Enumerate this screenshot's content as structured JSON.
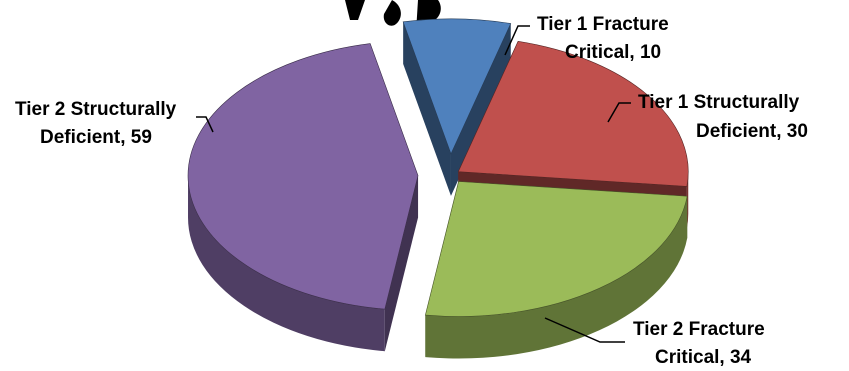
{
  "chart_data": {
    "type": "pie",
    "style": "3d-exploded",
    "slices": [
      {
        "key": "t1fc",
        "label": "Tier 1 Fracture Critical",
        "value": 10,
        "color": "#4f81bd"
      },
      {
        "key": "t1sd",
        "label": "Tier 1 Structurally Deficient",
        "value": 30,
        "color": "#c0504d"
      },
      {
        "key": "t2fc",
        "label": "Tier 2 Fracture Critical",
        "value": 34,
        "color": "#9bbb59"
      },
      {
        "key": "t2sd",
        "label": "Tier 2 Structurally Deficient",
        "value": 59,
        "color": "#8064a2"
      }
    ],
    "data_labels": {
      "t1fc": {
        "line1": "Tier 1 Fracture",
        "line2": "Critical, 10"
      },
      "t1sd": {
        "line1": "Tier 1 Structurally",
        "line2": "Deficient, 30"
      },
      "t2fc": {
        "line1": "Tier 2 Fracture",
        "line2": "Critical, 34"
      },
      "t2sd": {
        "line1": "Tier 2 Structurally",
        "line2": "Deficient, 59"
      }
    }
  }
}
